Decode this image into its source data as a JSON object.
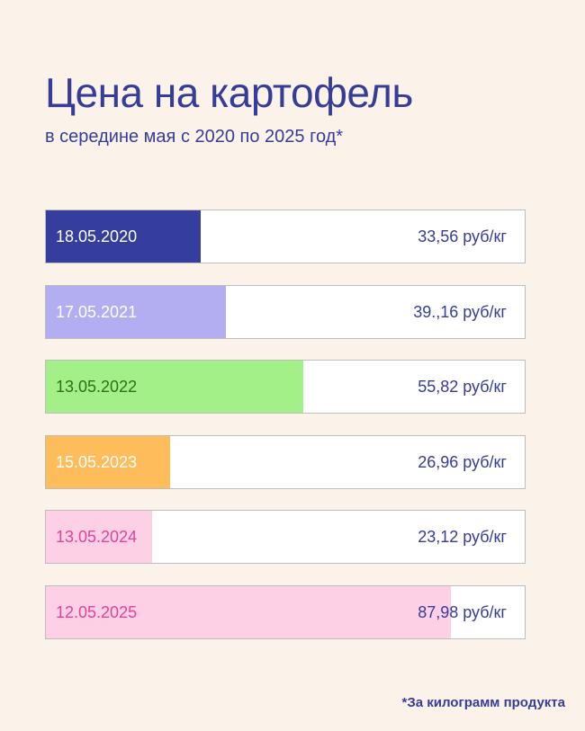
{
  "header": {
    "title": "Цена на картофель",
    "subtitle": "в середине мая с 2020 по 2025 год*"
  },
  "footnote": "*За килограмм продукта",
  "colors": {
    "background": "#fbf3ea",
    "text": "#363c98"
  },
  "chart_data": {
    "type": "bar",
    "orientation": "horizontal",
    "title": "Цена на картофель",
    "subtitle": "в середине мая с 2020 по 2025 год*",
    "xlim": [
      0,
      104
    ],
    "categories": [
      "18.05.2020",
      "17.05.2021",
      "13.05.2022",
      "15.05.2023",
      "13.05.2024",
      "12.05.2025"
    ],
    "values": [
      33.56,
      39.16,
      55.82,
      26.96,
      23.12,
      87.98
    ],
    "value_labels": [
      "33,56 руб/кг",
      "39.,16 руб/кг",
      "55,82 руб/кг",
      "26,96 руб/кг",
      "23,12 руб/кг",
      "87,98 руб/кг"
    ],
    "bar_colors": [
      "#363e9d",
      "#b3adf2",
      "#a3f088",
      "#ffbc5a",
      "#fdd0e6",
      "#fdd0e6"
    ],
    "date_label_colors": [
      "#ffffff",
      "#ffffff",
      "#2f6f17",
      "#ffffff",
      "#e0439a",
      "#e0439a"
    ]
  }
}
